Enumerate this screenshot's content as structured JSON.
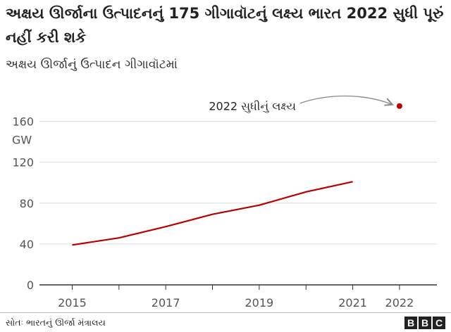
{
  "chart_data": {
    "type": "line",
    "title": "અક્ષય ઊર્જાના ઉત્પાદનનું 175 ગીગાવૉટનું લક્ષ્ય ભારત 2022 સુધી પૂરું નહીં કરી શકે",
    "subtitle": "અક્ષય ઊર્જાનું ઉત્પાદન ગીગાવૉટમાં",
    "unit_label": "GW",
    "x_ticks": [
      "2015",
      "2017",
      "2019",
      "2021",
      "2022"
    ],
    "y_ticks": [
      0,
      40,
      80,
      120,
      160
    ],
    "ylim": [
      0,
      170
    ],
    "xlim": [
      2014.3,
      2022.8
    ],
    "series": [
      {
        "x": [
          2015,
          2016,
          2017,
          2018,
          2019,
          2020,
          2021
        ],
        "values": [
          39,
          46,
          57,
          69,
          78,
          91,
          101
        ]
      }
    ],
    "target": {
      "x": 2022,
      "value": 175,
      "label": "2022 સુધીનું લક્ષ્ય"
    },
    "grid": "horizontal",
    "colors": {
      "line": "#b80000",
      "grid": "#dddddd",
      "axis": "#333333",
      "annotation": "#888888"
    }
  },
  "source": "સોતઃ ભારતનું ઊર્જા મંત્રાલય",
  "logo": {
    "letters": [
      "B",
      "B",
      "C"
    ]
  }
}
